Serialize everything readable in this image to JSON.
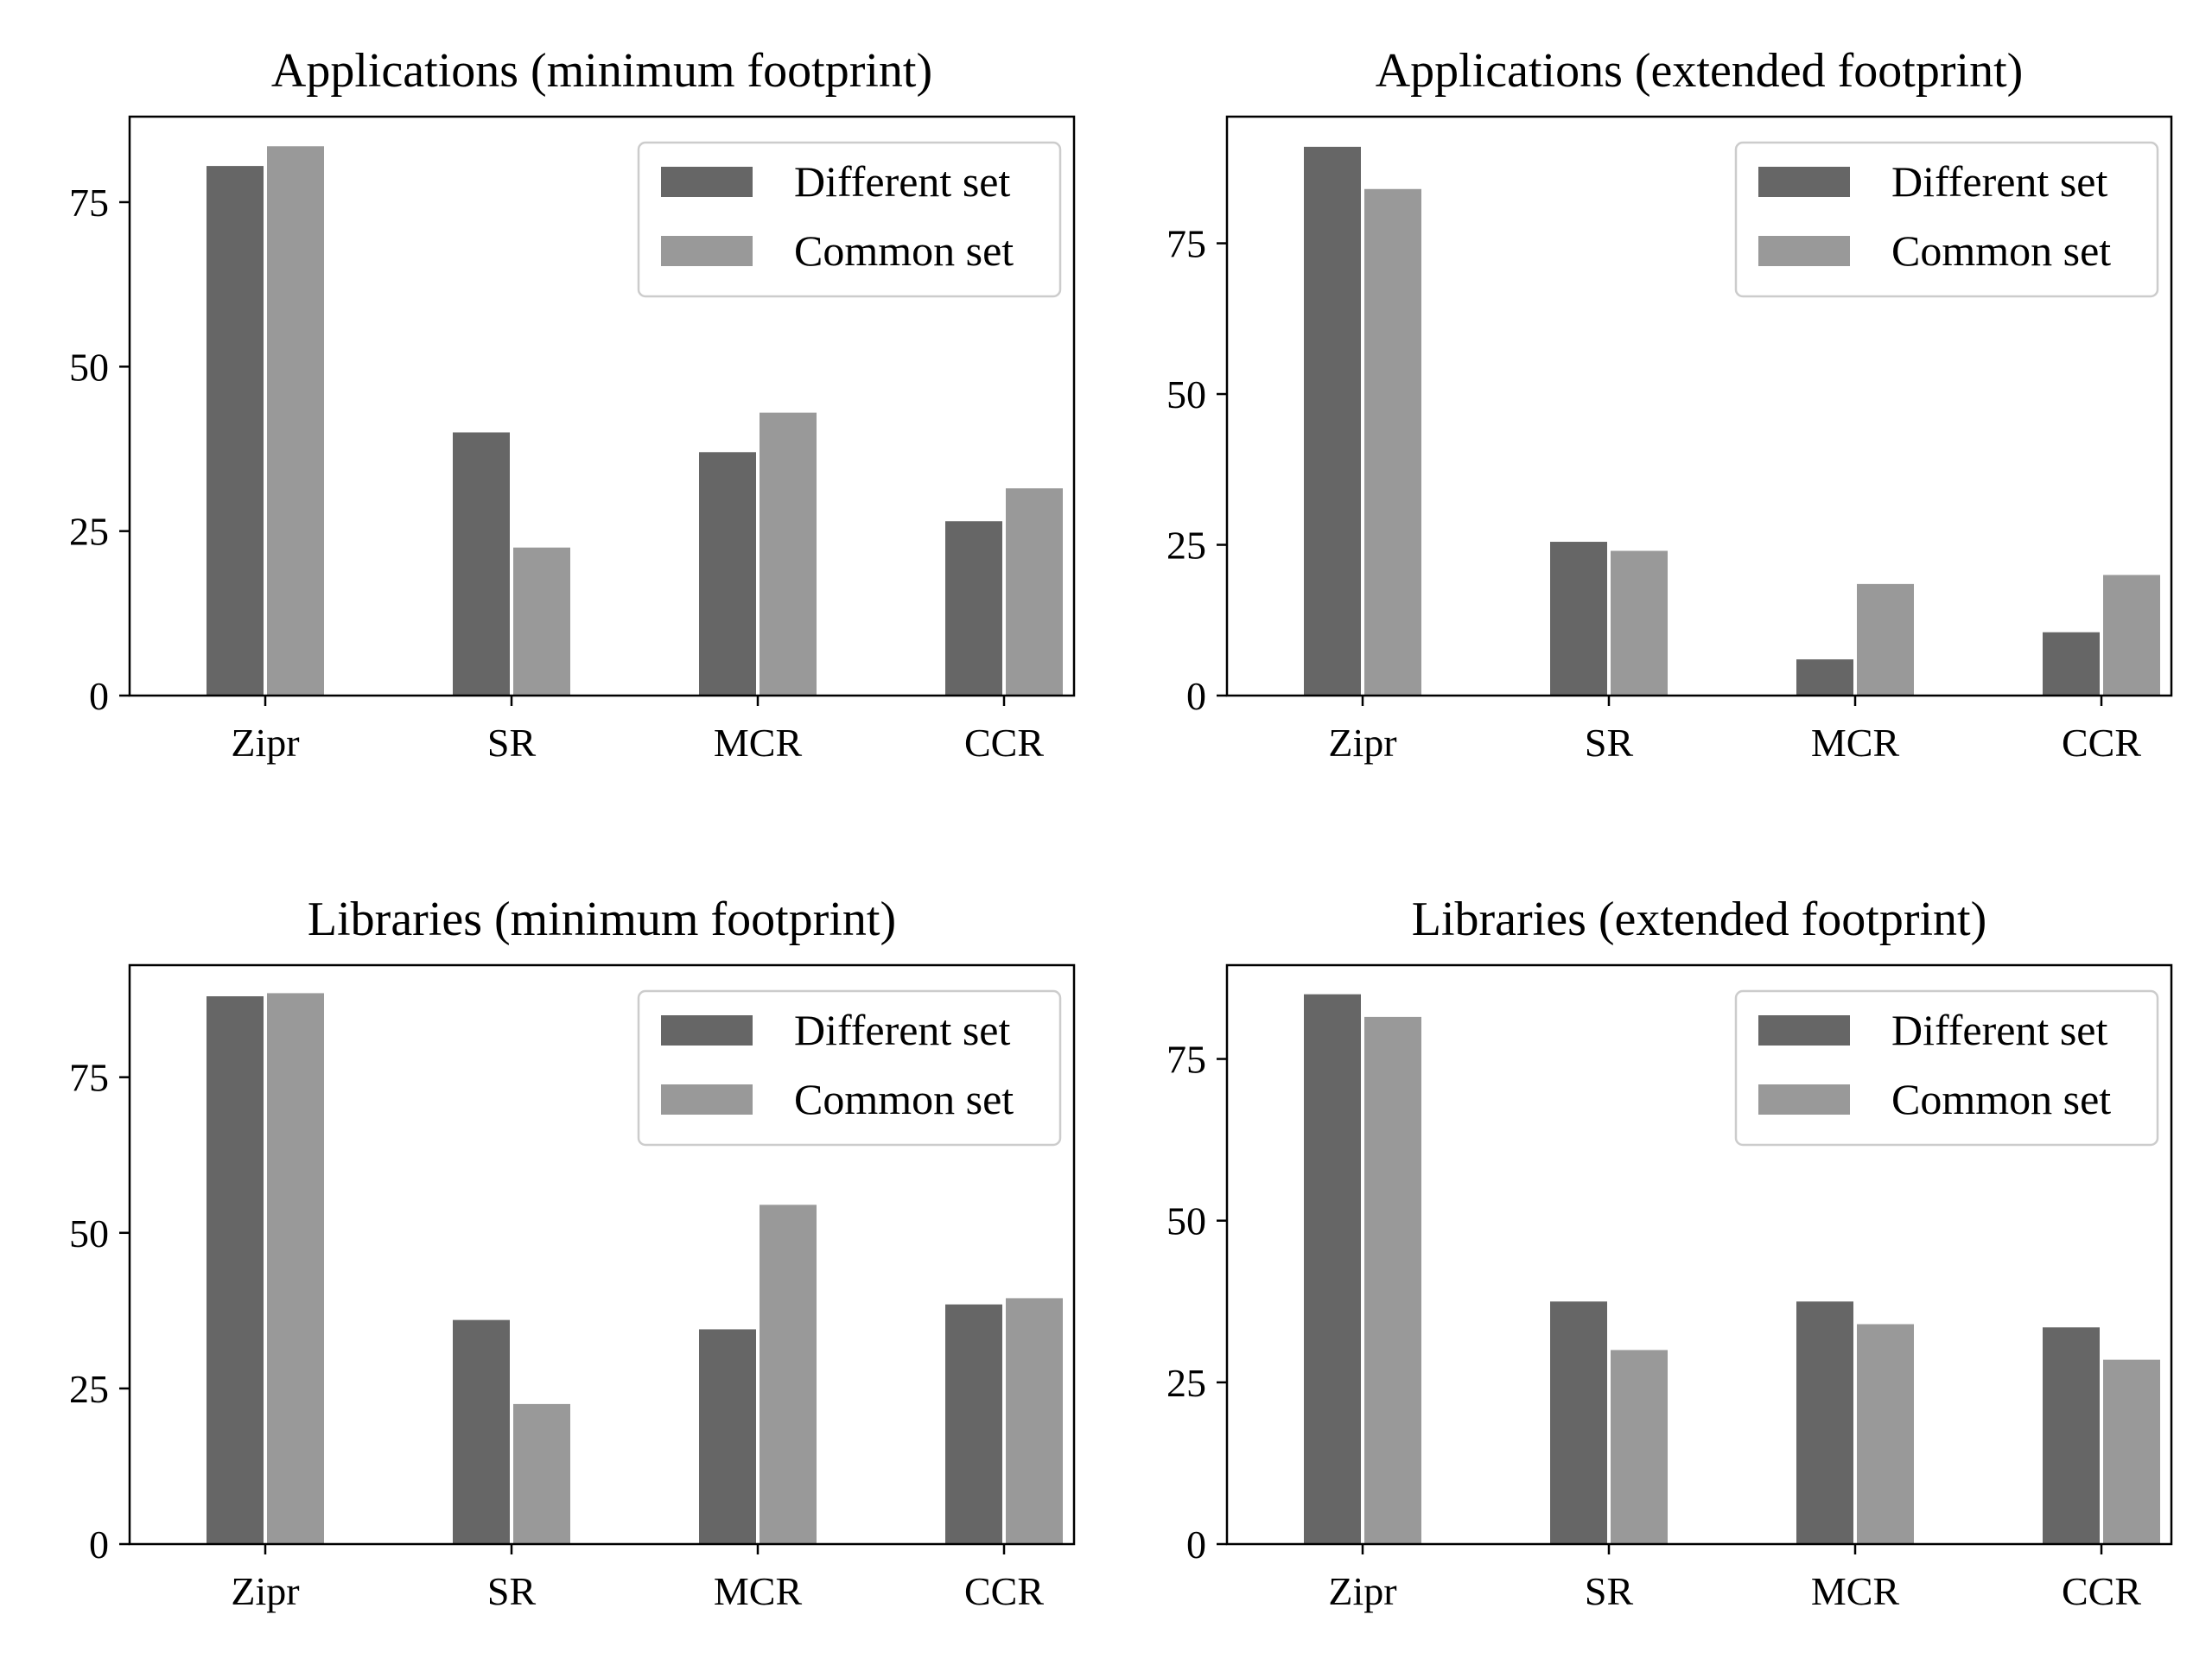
{
  "colors": {
    "different": "#666666",
    "common": "#999999",
    "axis": "#000000",
    "legend_border": "#cccccc"
  },
  "chart_data": [
    {
      "type": "bar",
      "title": "Applications (minimum footprint)",
      "categories": [
        "Zipr",
        "SR",
        "MCR",
        "CCR"
      ],
      "series": [
        {
          "name": "Different set",
          "values": [
            80.5,
            40,
            37,
            26.5
          ]
        },
        {
          "name": "Common set",
          "values": [
            83.5,
            22.5,
            43,
            31.5
          ]
        }
      ],
      "ylim": [
        0,
        88
      ],
      "yticks": [
        0,
        25,
        50,
        75
      ],
      "legend": "top-right",
      "xlabel": "",
      "ylabel": ""
    },
    {
      "type": "bar",
      "title": "Applications (extended footprint)",
      "categories": [
        "Zipr",
        "SR",
        "MCR",
        "CCR"
      ],
      "series": [
        {
          "name": "Different set",
          "values": [
            91,
            25.5,
            6,
            10.5
          ]
        },
        {
          "name": "Common set",
          "values": [
            84,
            24,
            18.5,
            20
          ]
        }
      ],
      "ylim": [
        0,
        96
      ],
      "yticks": [
        0,
        25,
        50,
        75
      ],
      "legend": "top-right",
      "xlabel": "",
      "ylabel": ""
    },
    {
      "type": "bar",
      "title": "Libraries (minimum footprint)",
      "categories": [
        "Zipr",
        "SR",
        "MCR",
        "CCR"
      ],
      "series": [
        {
          "name": "Different set",
          "values": [
            88,
            36,
            34.5,
            38.5
          ]
        },
        {
          "name": "Common set",
          "values": [
            88.5,
            22.5,
            54.5,
            39.5
          ]
        }
      ],
      "ylim": [
        0,
        93
      ],
      "yticks": [
        0,
        25,
        50,
        75
      ],
      "legend": "top-right",
      "xlabel": "",
      "ylabel": ""
    },
    {
      "type": "bar",
      "title": "Libraries (extended footprint)",
      "categories": [
        "Zipr",
        "SR",
        "MCR",
        "CCR"
      ],
      "series": [
        {
          "name": "Different set",
          "values": [
            85,
            37.5,
            37.5,
            33.5
          ]
        },
        {
          "name": "Common set",
          "values": [
            81.5,
            30,
            34,
            28.5
          ]
        }
      ],
      "ylim": [
        0,
        89.5
      ],
      "yticks": [
        0,
        25,
        50,
        75
      ],
      "legend": "top-right",
      "xlabel": "",
      "ylabel": ""
    }
  ]
}
